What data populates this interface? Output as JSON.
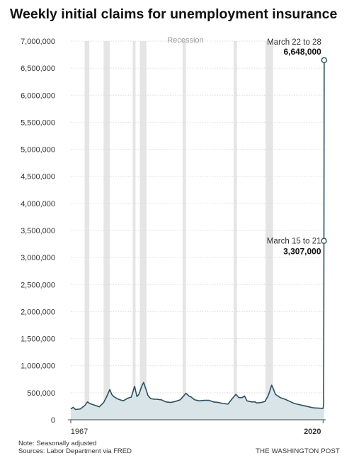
{
  "chart_data": {
    "type": "area",
    "title": "Weekly initial claims for unemployment insurance",
    "xlabel": "",
    "ylabel": "",
    "xlim": [
      1967,
      2020.25
    ],
    "ylim": [
      0,
      7000000
    ],
    "y_ticks": [
      0,
      500000,
      1000000,
      1500000,
      2000000,
      2500000,
      3000000,
      3500000,
      4000000,
      4500000,
      5000000,
      5500000,
      6000000,
      6500000,
      7000000
    ],
    "y_tick_labels": [
      "0",
      "500,000",
      "1,000,000",
      "1,500,000",
      "2,000,000",
      "2,500,000",
      "3,000,000",
      "3,500,000",
      "4,000,000",
      "4,500,000",
      "5,000,000",
      "5,500,000",
      "6,000,000",
      "6,500,000",
      "7,000,000"
    ],
    "x_tick_labels": [
      {
        "x": 1967,
        "label": "1967",
        "bold": false
      },
      {
        "x": 2020,
        "label": "2020",
        "bold": true
      }
    ],
    "recession_label": "Recession",
    "recessions": [
      [
        1969.9,
        1970.9
      ],
      [
        1973.9,
        1975.2
      ],
      [
        1980.0,
        1980.5
      ],
      [
        1981.5,
        1982.9
      ],
      [
        1990.5,
        1991.2
      ],
      [
        2001.2,
        2001.9
      ],
      [
        2007.9,
        2009.5
      ]
    ],
    "series": [
      {
        "x": [
          1967,
          1967.5,
          1968,
          1969,
          1969.9,
          1970.5,
          1971,
          1972,
          1973,
          1973.9,
          1974.5,
          1975.2,
          1975.6,
          1976,
          1977,
          1978,
          1979,
          1979.7,
          1980.2,
          1980.4,
          1980.9,
          1981.3,
          1981.9,
          1982.3,
          1982.8,
          1983.2,
          1983.8,
          1984.5,
          1985,
          1986,
          1987,
          1988,
          1989,
          1990,
          1990.5,
          1991.2,
          1991.8,
          1992.3,
          1993,
          1994,
          1995,
          1996,
          1997,
          1998,
          1999,
          2000,
          2001,
          2001.7,
          2002.3,
          2003,
          2003.5,
          2004,
          2005,
          2005.8,
          2006,
          2007,
          2007.8,
          2008.5,
          2009.2,
          2009.6,
          2010,
          2011,
          2012,
          2013,
          2014,
          2015,
          2016,
          2017,
          2018,
          2019,
          2019.9,
          2020.0,
          2020.12,
          2020.18,
          2020.23
        ],
        "values": [
          200000,
          230000,
          190000,
          200000,
          260000,
          330000,
          300000,
          270000,
          240000,
          320000,
          420000,
          560000,
          470000,
          430000,
          380000,
          350000,
          400000,
          420000,
          560000,
          620000,
          430000,
          470000,
          620000,
          690000,
          560000,
          450000,
          390000,
          380000,
          380000,
          370000,
          330000,
          320000,
          340000,
          370000,
          420000,
          490000,
          440000,
          420000,
          370000,
          350000,
          360000,
          360000,
          330000,
          320000,
          300000,
          290000,
          400000,
          470000,
          410000,
          410000,
          440000,
          350000,
          330000,
          330000,
          310000,
          320000,
          340000,
          450000,
          640000,
          560000,
          470000,
          410000,
          380000,
          340000,
          300000,
          280000,
          260000,
          240000,
          220000,
          215000,
          210000,
          211000,
          282000,
          3307000,
          6648000
        ]
      }
    ],
    "annotations": [
      {
        "x": 2020.18,
        "y": 3307000,
        "date_label": "March 15 to 21",
        "value_label": "3,307,000"
      },
      {
        "x": 2020.23,
        "y": 6648000,
        "date_label": "March 22 to 28",
        "value_label": "6,648,000"
      }
    ],
    "colors": {
      "line": "#2b4f5e",
      "area": "#d9e4e8",
      "recession": "#e5e5e5",
      "grid": "#dcdcdc",
      "axis": "#444444"
    },
    "grid": true
  },
  "footer": {
    "note": "Note: Seasonally adjusted",
    "sources": "Sources: Labor Department via FRED",
    "credit": "THE WASHINGTON POST"
  }
}
